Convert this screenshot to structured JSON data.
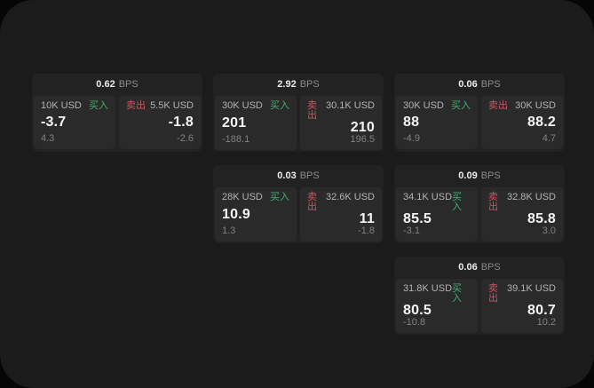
{
  "labels": {
    "bps": "BPS",
    "buy": "买入",
    "sell": "卖出"
  },
  "colors": {
    "page_bg": "#060606",
    "panel_bg": "#1b1b1c",
    "card_bg": "#222223",
    "tile_bg": "#2a2a2b",
    "buy": "#3eb36f",
    "sell": "#cf5360"
  },
  "cards": [
    {
      "col": 1,
      "row": 1,
      "bps": "0.62",
      "buy": {
        "amount": "10K USD",
        "price": "-3.7",
        "delta": "4.3"
      },
      "sell": {
        "amount": "5.5K USD",
        "price": "-1.8",
        "delta": "-2.6"
      }
    },
    {
      "col": 2,
      "row": 1,
      "bps": "2.92",
      "buy": {
        "amount": "30K USD",
        "price": "201",
        "delta": "-188.1"
      },
      "sell": {
        "amount": "30.1K USD",
        "price": "210",
        "delta": "196.5"
      }
    },
    {
      "col": 3,
      "row": 1,
      "bps": "0.06",
      "buy": {
        "amount": "30K USD",
        "price": "88",
        "delta": "-4.9"
      },
      "sell": {
        "amount": "30K USD",
        "price": "88.2",
        "delta": "4.7"
      }
    },
    {
      "col": 2,
      "row": 2,
      "bps": "0.03",
      "buy": {
        "amount": "28K USD",
        "price": "10.9",
        "delta": "1.3"
      },
      "sell": {
        "amount": "32.6K USD",
        "price": "11",
        "delta": "-1.8"
      }
    },
    {
      "col": 3,
      "row": 2,
      "bps": "0.09",
      "buy": {
        "amount": "34.1K USD",
        "price": "85.5",
        "delta": "-3.1"
      },
      "sell": {
        "amount": "32.8K USD",
        "price": "85.8",
        "delta": "3.0"
      }
    },
    {
      "col": 3,
      "row": 3,
      "bps": "0.06",
      "buy": {
        "amount": "31.8K USD",
        "price": "80.5",
        "delta": "-10.8"
      },
      "sell": {
        "amount": "39.1K USD",
        "price": "80.7",
        "delta": "10.2"
      }
    }
  ]
}
